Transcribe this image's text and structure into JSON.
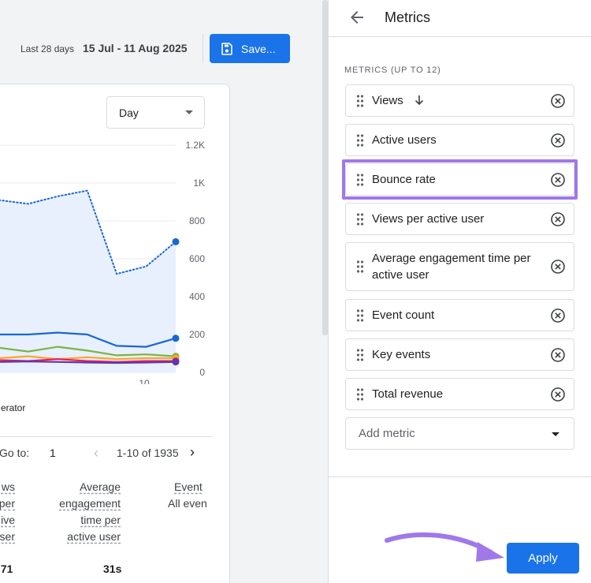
{
  "header": {
    "date_label": "Last 28 days",
    "date_range": "15 Jul - 11 Aug 2025",
    "save_label": "Save..."
  },
  "report": {
    "granularity": "Day",
    "y_axis_ticks": [
      "1.2K",
      "1K",
      "800",
      "600",
      "400",
      "200",
      "0"
    ],
    "x_axis_ticks": [
      "10"
    ],
    "legend_partial": "erator",
    "pagination": {
      "goto_label": "Go to:",
      "goto_value": "1",
      "range": "1-10 of 1935"
    },
    "columns": [
      {
        "lines": [
          "ws",
          "per",
          "ive",
          "user"
        ],
        "value": ".71"
      },
      {
        "lines": [
          "Average",
          "engagement",
          "time per",
          "active user"
        ],
        "value": "31s"
      },
      {
        "lines": [
          "Event",
          "All even"
        ],
        "value": ""
      }
    ]
  },
  "chart_data": {
    "type": "line",
    "ylim": [
      0,
      1200
    ],
    "y_ticks": [
      0,
      200,
      400,
      600,
      800,
      1000,
      1200
    ],
    "y_tick_labels": [
      "0",
      "200",
      "400",
      "600",
      "800",
      "1K",
      "1.2K"
    ],
    "x_tick_labels": [
      "10"
    ],
    "series": [
      {
        "color": "#1967d2",
        "style": "dotted-area",
        "values": [
          850,
          910,
          890,
          930,
          960,
          520,
          560,
          690
        ]
      },
      {
        "color": "#1967d2",
        "values": [
          195,
          200,
          200,
          210,
          200,
          140,
          135,
          180
        ]
      },
      {
        "color": "#7cb342",
        "values": [
          120,
          130,
          110,
          135,
          115,
          90,
          95,
          85
        ]
      },
      {
        "color": "#f9a825",
        "values": [
          80,
          75,
          85,
          70,
          80,
          70,
          75,
          75
        ]
      },
      {
        "color": "#e91e63",
        "values": [
          60,
          65,
          60,
          70,
          60,
          55,
          60,
          60
        ]
      },
      {
        "color": "#5e35b1",
        "values": [
          55,
          55,
          58,
          55,
          52,
          50,
          52,
          55
        ]
      }
    ]
  },
  "panel": {
    "title": "Metrics",
    "section_label": "METRICS (UP TO 12)",
    "metrics": [
      {
        "label": "Views",
        "sorted": true
      },
      {
        "label": "Active users"
      },
      {
        "label": "Bounce rate",
        "highlighted": true
      },
      {
        "label": "Views per active user"
      },
      {
        "label": "Average engagement time per active user"
      },
      {
        "label": "Event count"
      },
      {
        "label": "Key events"
      },
      {
        "label": "Total revenue"
      }
    ],
    "add_metric_placeholder": "Add metric",
    "apply_label": "Apply",
    "accent_color": "#1a73e8",
    "highlight_color": "#a078e8"
  }
}
